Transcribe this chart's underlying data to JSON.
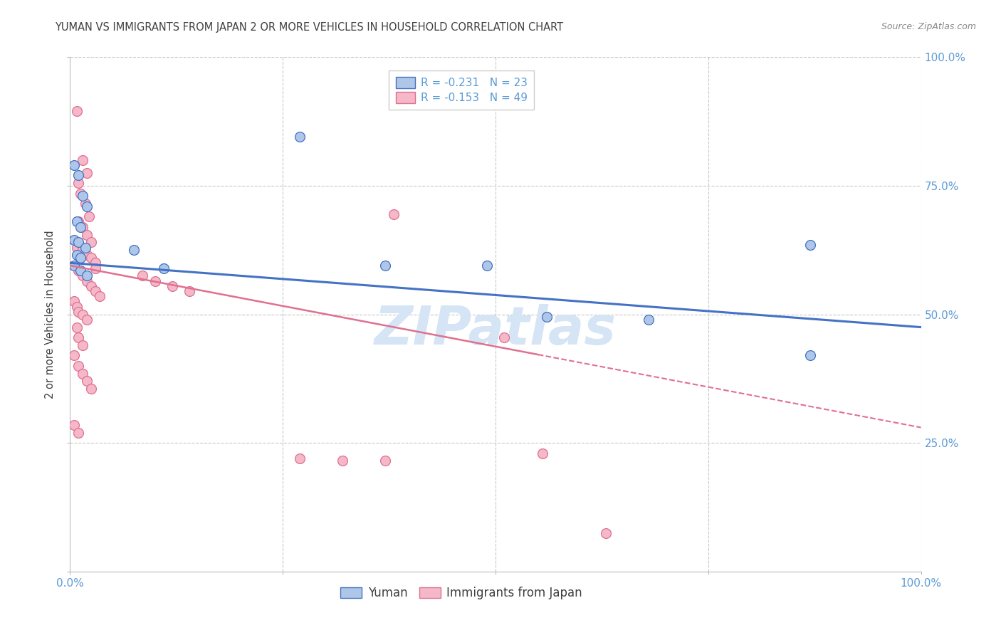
{
  "title": "YUMAN VS IMMIGRANTS FROM JAPAN 2 OR MORE VEHICLES IN HOUSEHOLD CORRELATION CHART",
  "source": "Source: ZipAtlas.com",
  "ylabel": "2 or more Vehicles in Household",
  "watermark": "ZIPatlas",
  "xlim": [
    0,
    1
  ],
  "ylim": [
    0,
    1
  ],
  "blue_scatter": [
    [
      0.005,
      0.79
    ],
    [
      0.01,
      0.77
    ],
    [
      0.015,
      0.73
    ],
    [
      0.02,
      0.71
    ],
    [
      0.008,
      0.68
    ],
    [
      0.012,
      0.67
    ],
    [
      0.005,
      0.645
    ],
    [
      0.01,
      0.64
    ],
    [
      0.018,
      0.63
    ],
    [
      0.008,
      0.615
    ],
    [
      0.012,
      0.61
    ],
    [
      0.005,
      0.595
    ],
    [
      0.012,
      0.585
    ],
    [
      0.02,
      0.575
    ],
    [
      0.075,
      0.625
    ],
    [
      0.11,
      0.59
    ],
    [
      0.27,
      0.845
    ],
    [
      0.37,
      0.595
    ],
    [
      0.49,
      0.595
    ],
    [
      0.56,
      0.495
    ],
    [
      0.68,
      0.49
    ],
    [
      0.87,
      0.635
    ],
    [
      0.87,
      0.42
    ]
  ],
  "pink_scatter": [
    [
      0.008,
      0.895
    ],
    [
      0.015,
      0.8
    ],
    [
      0.02,
      0.775
    ],
    [
      0.01,
      0.755
    ],
    [
      0.012,
      0.735
    ],
    [
      0.018,
      0.715
    ],
    [
      0.022,
      0.69
    ],
    [
      0.01,
      0.68
    ],
    [
      0.015,
      0.67
    ],
    [
      0.02,
      0.655
    ],
    [
      0.025,
      0.64
    ],
    [
      0.008,
      0.63
    ],
    [
      0.015,
      0.625
    ],
    [
      0.02,
      0.615
    ],
    [
      0.025,
      0.61
    ],
    [
      0.03,
      0.6
    ],
    [
      0.03,
      0.59
    ],
    [
      0.01,
      0.585
    ],
    [
      0.015,
      0.575
    ],
    [
      0.02,
      0.565
    ],
    [
      0.025,
      0.555
    ],
    [
      0.03,
      0.545
    ],
    [
      0.035,
      0.535
    ],
    [
      0.005,
      0.525
    ],
    [
      0.008,
      0.515
    ],
    [
      0.01,
      0.505
    ],
    [
      0.015,
      0.5
    ],
    [
      0.02,
      0.49
    ],
    [
      0.008,
      0.475
    ],
    [
      0.01,
      0.455
    ],
    [
      0.015,
      0.44
    ],
    [
      0.005,
      0.42
    ],
    [
      0.01,
      0.4
    ],
    [
      0.015,
      0.385
    ],
    [
      0.02,
      0.37
    ],
    [
      0.025,
      0.355
    ],
    [
      0.38,
      0.695
    ],
    [
      0.085,
      0.575
    ],
    [
      0.1,
      0.565
    ],
    [
      0.12,
      0.555
    ],
    [
      0.14,
      0.545
    ],
    [
      0.51,
      0.455
    ],
    [
      0.555,
      0.23
    ],
    [
      0.005,
      0.285
    ],
    [
      0.01,
      0.27
    ],
    [
      0.27,
      0.22
    ],
    [
      0.32,
      0.215
    ],
    [
      0.37,
      0.215
    ],
    [
      0.63,
      0.075
    ]
  ],
  "blue_line_x": [
    0.0,
    1.0
  ],
  "blue_line_y": [
    0.6,
    0.475
  ],
  "pink_line_x": [
    0.0,
    1.0
  ],
  "pink_line_y": [
    0.595,
    0.28
  ],
  "pink_line_solid_end": 0.55,
  "blue_color": "#aec6e8",
  "pink_color": "#f4b8c8",
  "blue_edge_color": "#4472c4",
  "pink_edge_color": "#e07090",
  "blue_line_color": "#4472c4",
  "pink_line_color": "#e07090",
  "background_color": "#ffffff",
  "grid_color": "#c8c8c8",
  "title_color": "#404040",
  "axis_tick_color": "#5b9bd5",
  "watermark_color": "#d5e5f5",
  "legend1_labels": [
    "R = -0.231   N = 23",
    "R = -0.153   N = 49"
  ],
  "legend2_labels": [
    "Yuman",
    "Immigrants from Japan"
  ]
}
